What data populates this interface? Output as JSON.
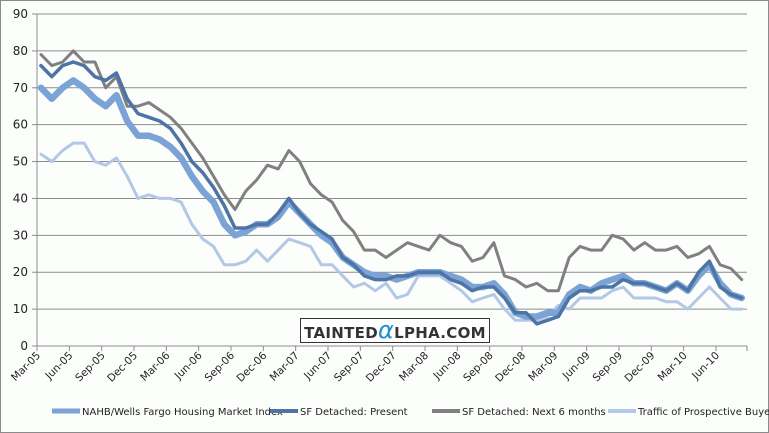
{
  "chart_data": {
    "type": "line",
    "title": "",
    "xlabel": "",
    "ylabel": "",
    "ylim": [
      0,
      90
    ],
    "yticks": [
      "0",
      "10",
      "20",
      "30",
      "40",
      "50",
      "60",
      "70",
      "80",
      "90"
    ],
    "grid": true,
    "legend_position": "bottom",
    "x_frequency": "monthly",
    "x_tick_labels": [
      "Mar-05",
      "Jun-05",
      "Sep-05",
      "Dec-05",
      "Mar-06",
      "Jun-06",
      "Sep-06",
      "Dec-06",
      "Mar-07",
      "Jun-07",
      "Sep-07",
      "Dec-07",
      "Mar-08",
      "Jun-08",
      "Sep-08",
      "Dec-08",
      "Mar-09",
      "Jun-09",
      "Sep-09",
      "Dec-09",
      "Mar-10",
      "Jun-10"
    ],
    "series": [
      {
        "name": "NAHB/Wells Fargo Housing Market Index",
        "color": "#7ba3d6",
        "values": [
          70,
          67,
          70,
          72,
          70,
          67,
          65,
          68,
          61,
          57,
          57,
          56,
          54,
          51,
          46,
          42,
          39,
          33,
          30,
          31,
          33,
          33,
          35,
          39,
          36,
          33,
          30,
          28,
          24,
          22,
          20,
          19,
          19,
          18,
          19,
          20,
          20,
          20,
          19,
          18,
          16,
          16,
          17,
          14,
          9,
          8,
          8,
          9,
          9,
          14,
          16,
          15,
          17,
          18,
          19,
          17,
          17,
          16,
          15,
          17,
          15,
          19,
          22,
          17,
          14,
          13
        ]
      },
      {
        "name": "SF Detached: Present",
        "color": "#4e73a5",
        "values": [
          76,
          73,
          76,
          77,
          76,
          73,
          72,
          74,
          67,
          63,
          62,
          61,
          59,
          55,
          50,
          47,
          43,
          38,
          32,
          32,
          33,
          33,
          36,
          40,
          36,
          33,
          31,
          29,
          24,
          22,
          19,
          18,
          18,
          19,
          19,
          20,
          20,
          20,
          18,
          17,
          15,
          16,
          16,
          13,
          9,
          9,
          6,
          7,
          8,
          13,
          15,
          15,
          16,
          16,
          18,
          17,
          17,
          16,
          15,
          17,
          15,
          20,
          23,
          16,
          14,
          13
        ]
      },
      {
        "name": "SF Detached: Next 6 months",
        "color": "#808080",
        "values": [
          79,
          76,
          77,
          80,
          77,
          77,
          70,
          73,
          65,
          65,
          66,
          64,
          62,
          59,
          55,
          51,
          46,
          41,
          37,
          42,
          45,
          49,
          48,
          53,
          50,
          44,
          41,
          39,
          34,
          31,
          26,
          26,
          24,
          26,
          28,
          27,
          26,
          30,
          28,
          27,
          23,
          24,
          28,
          19,
          18,
          16,
          17,
          15,
          15,
          24,
          27,
          26,
          26,
          30,
          29,
          26,
          28,
          26,
          26,
          27,
          24,
          25,
          27,
          22,
          21,
          18
        ]
      },
      {
        "name": "Traffic of Prospective Buyers",
        "color": "#b3c8e6",
        "values": [
          52,
          50,
          53,
          55,
          55,
          50,
          49,
          51,
          46,
          40,
          41,
          40,
          40,
          39,
          33,
          29,
          27,
          22,
          22,
          23,
          26,
          23,
          26,
          29,
          28,
          27,
          22,
          22,
          19,
          16,
          17,
          15,
          17,
          13,
          14,
          19,
          19,
          19,
          17,
          15,
          12,
          13,
          14,
          10,
          7,
          7,
          7,
          8,
          11,
          10,
          13,
          13,
          13,
          15,
          16,
          13,
          13,
          13,
          12,
          12,
          10,
          13,
          16,
          13,
          10,
          10
        ]
      }
    ]
  },
  "watermark": {
    "prefix": "TAINTED",
    "alpha": "α",
    "suffix": "LPHA.COM"
  }
}
